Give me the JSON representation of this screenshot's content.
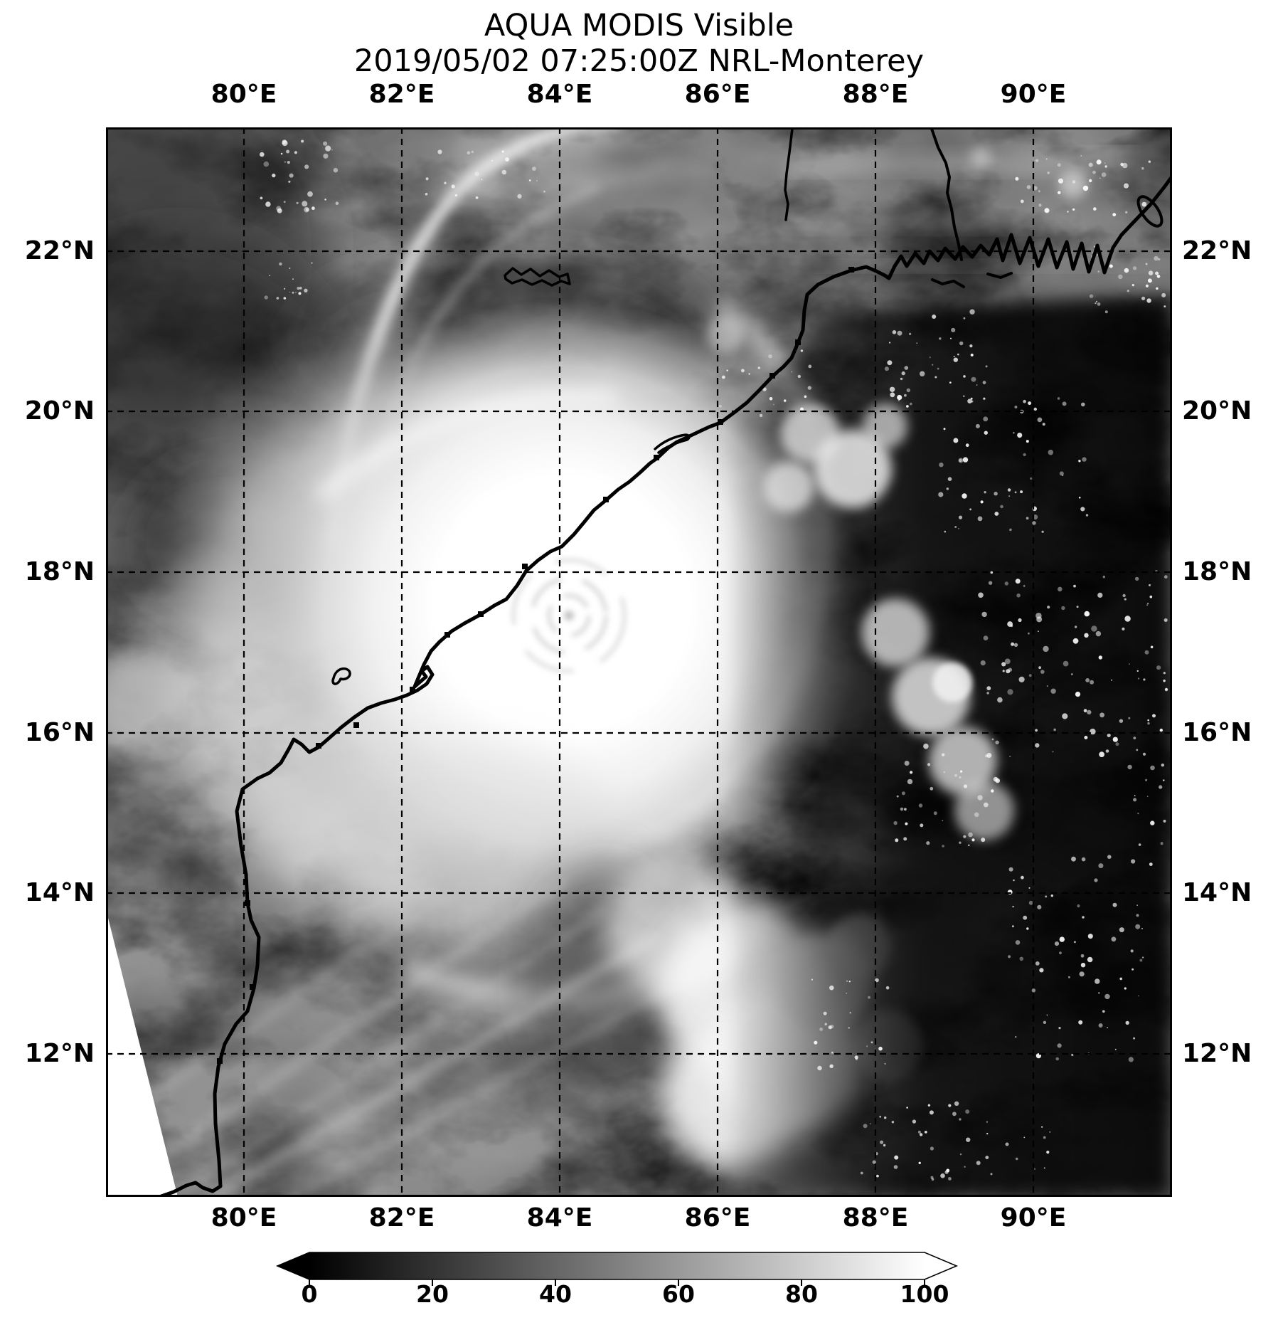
{
  "title": "AQUA MODIS Visible",
  "subtitle": "2019/05/02 07:25:00Z NRL-Monterey",
  "axes": {
    "x_labels": [
      "80°E",
      "82°E",
      "84°E",
      "86°E",
      "88°E",
      "90°E"
    ],
    "y_labels": [
      "22°N",
      "20°N",
      "18°N",
      "16°N",
      "14°N",
      "12°N"
    ]
  },
  "colorbar": {
    "ticks": [
      "0",
      "20",
      "40",
      "60",
      "80",
      "100"
    ],
    "gradient_start": "#000000",
    "gradient_end": "#ffffff",
    "extend": "both"
  },
  "chart_data": {
    "type": "heatmap",
    "title": "AQUA MODIS Visible",
    "subtitle": "2019/05/02 07:25:00Z NRL-Monterey",
    "x_axis": {
      "ticks_deg_east": [
        80,
        82,
        84,
        86,
        88,
        90
      ],
      "tick_labels": [
        "80°E",
        "82°E",
        "84°E",
        "86°E",
        "88°E",
        "90°E"
      ],
      "shown_on": [
        "top",
        "bottom"
      ]
    },
    "y_axis": {
      "ticks_deg_north": [
        22,
        20,
        18,
        16,
        14,
        12
      ],
      "tick_labels": [
        "22°N",
        "20°N",
        "18°N",
        "16°N",
        "14°N",
        "12°N"
      ],
      "shown_on": [
        "left",
        "right"
      ]
    },
    "map_extent": {
      "lon_min_e": 78.3,
      "lon_max_e": 91.6,
      "lat_min_n": 10.2,
      "lat_max_n": 23.6
    },
    "grid": "dashed black lat/lon grid every 2 degrees",
    "colorbar": {
      "min": 0,
      "max": 100,
      "ticks": [
        0,
        20,
        40,
        60,
        80,
        100
      ],
      "colormap": "grayscale black to white",
      "extend": "both",
      "orientation": "horizontal",
      "position": "bottom"
    },
    "content_description": "Visible-band greyscale satellite scene of a tropical cyclone over the Bay of Bengal: dense white central overcast with eyewall near 17.5N 84E adjacent to the Indian east coast, bright curved outflow band to the northwest, cirrus streaks to the southwest, dark nearly cloud-free air with popcorn cumulus east of ~88E, Indian and Bangladesh coastlines overlaid in black, and a white no-data swath wedge in the lower-left corner"
  }
}
